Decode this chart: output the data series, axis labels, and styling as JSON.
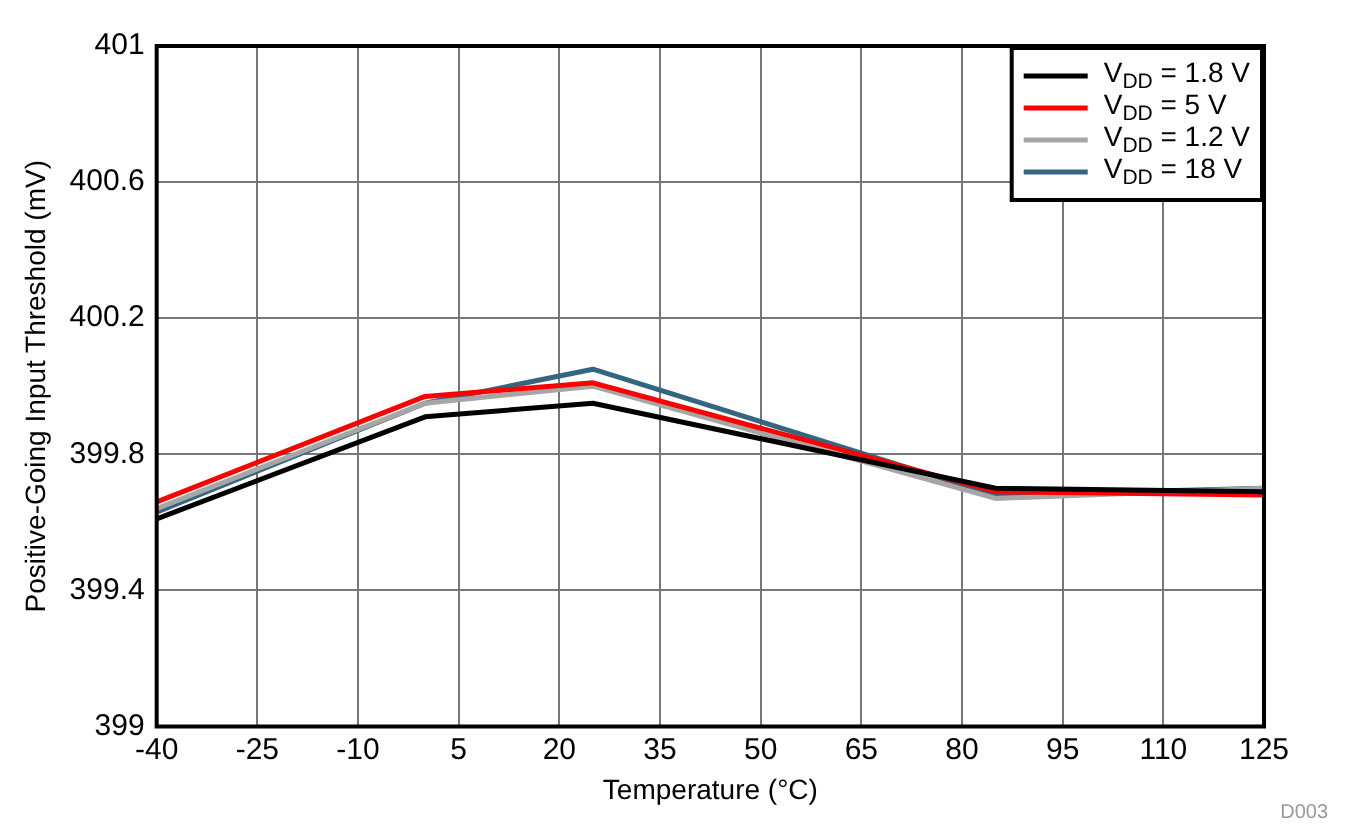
{
  "chart_data": {
    "type": "line",
    "xlabel": "Temperature (°C)",
    "ylabel": "Positive-Going Input Threshold (mV)",
    "x": [
      -40,
      0,
      25,
      85,
      125
    ],
    "series": [
      {
        "name": "V$_{DD}$ = 1.8 V",
        "color": "#000000",
        "values": [
          399.61,
          399.91,
          399.95,
          399.7,
          399.69
        ]
      },
      {
        "name": "V$_{DD}$ = 5 V",
        "color": "#ff0000",
        "values": [
          399.66,
          399.97,
          400.01,
          399.69,
          399.68
        ]
      },
      {
        "name": "V$_{DD}$ = 1.2 V",
        "color": "#a6a6a6",
        "values": [
          399.64,
          399.95,
          400.0,
          399.67,
          399.7
        ]
      },
      {
        "name": "V$_{DD}$ = 18 V",
        "color": "#336680",
        "values": [
          399.63,
          399.95,
          400.05,
          399.68,
          399.7
        ]
      }
    ],
    "xlim": [
      -40,
      125
    ],
    "xticks": [
      -40,
      -25,
      -10,
      5,
      20,
      35,
      50,
      65,
      80,
      95,
      110,
      125
    ],
    "ylim": [
      399,
      401
    ],
    "yticks": [
      399,
      399.4,
      399.8,
      400.2,
      400.6,
      401
    ],
    "grid": true,
    "legend": "top right",
    "marker": "none",
    "line_style": "solid",
    "annotations": [
      "D003"
    ]
  }
}
